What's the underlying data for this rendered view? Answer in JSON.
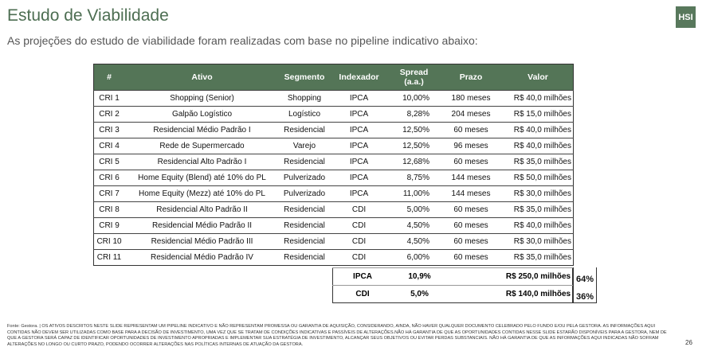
{
  "title": "Estudo de Viabilidade",
  "subtitle": "As projeções do estudo de viabilidade foram realizadas com base no pipeline indicativo abaixo:",
  "logo": "HSI",
  "table": {
    "headers": [
      "#",
      "Ativo",
      "Segmento",
      "Indexador",
      "Spread (a.a.)",
      "Prazo",
      "Valor"
    ],
    "rows": [
      [
        "CRI 1",
        "Shopping (Senior)",
        "Shopping",
        "IPCA",
        "10,00%",
        "180 meses",
        "R$ 40,0 milhões"
      ],
      [
        "CRI 2",
        "Galpão Logístico",
        "Logístico",
        "IPCA",
        "8,28%",
        "204 meses",
        "R$ 15,0 milhões"
      ],
      [
        "CRI 3",
        "Residencial Médio Padrão I",
        "Residencial",
        "IPCA",
        "12,50%",
        "60 meses",
        "R$ 40,0 milhões"
      ],
      [
        "CRI 4",
        "Rede de Supermercado",
        "Varejo",
        "IPCA",
        "12,50%",
        "96 meses",
        "R$ 40,0 milhões"
      ],
      [
        "CRI 5",
        "Residencial Alto Padrão I",
        "Residencial",
        "IPCA",
        "12,68%",
        "60 meses",
        "R$ 35,0 milhões"
      ],
      [
        "CRI 6",
        "Home Equity (Blend) até 10% do PL",
        "Pulverizado",
        "IPCA",
        "8,75%",
        "144 meses",
        "R$ 50,0 milhões"
      ],
      [
        "CRI 7",
        "Home Equity (Mezz) até 10% do PL",
        "Pulverizado",
        "IPCA",
        "11,00%",
        "144 meses",
        "R$ 30,0 milhões"
      ],
      [
        "CRI 8",
        "Residencial Alto Padrão II",
        "Residencial",
        "CDI",
        "5,00%",
        "60 meses",
        "R$ 35,0 milhões"
      ],
      [
        "CRI 9",
        "Residencial Médio Padrão II",
        "Residencial",
        "CDI",
        "4,50%",
        "60 meses",
        "R$ 40,0 milhões"
      ],
      [
        "CRI 10",
        "Residencial Médio Padrão III",
        "Residencial",
        "CDI",
        "4,50%",
        "60 meses",
        "R$ 30,0 milhões"
      ],
      [
        "CRI 11",
        "Residencial Médio Padrão IV",
        "Residencial",
        "CDI",
        "6,00%",
        "60 meses",
        "R$ 35,0 milhões"
      ]
    ]
  },
  "summary": [
    {
      "indexador": "IPCA",
      "spread": "10,9%",
      "valor": "R$ 250,0 milhões",
      "pct": "64%"
    },
    {
      "indexador": "CDI",
      "spread": "5,0%",
      "valor": "R$ 140,0 milhões",
      "pct": "36%"
    }
  ],
  "footnote": "Fonte: Gestora. | OS ATIVOS DESCRITOS NESTE SLIDE REPRESENTAM UM PIPELINE INDICATIVO E NÃO REPRESENTAM PROMESSA OU GARANTIA DE AQUISIÇÃO, CONSIDERANDO, AINDA, NÃO HAVER QUALQUER DOCUMENTO CELEBRADO PELO FUNDO E/OU PELA GESTORA. AS INFORMAÇÕES AQUI CONTIDAS NÃO DEVEM SER UTILIZADAS COMO BASE PARA A DECISÃO DE INVESTIMENTO, UMA VEZ QUE SE TRATAM DE CONDIÇÕES INDICATIVAS E PASSÍVEIS DE ALTERAÇÕES.NÃO HÁ GARANTIA DE QUE AS OPORTUNIDADES CONTIDAS NESSE SLIDE ESTARÃO DISPONÍVEIS PARA A GESTORA, NEM DE QUE A GESTORA SERÁ CAPAZ DE IDENTIFICAR OPORTUNIDADES DE INVESTIMENTO APROPRIADAS E IMPLEMENTAR SUA ESTRATÉGIA DE INVESTIMENTO, ALCANÇAR SEUS OBJETIVOS OU EVITAR PERDAS SUBSTANCIAIS. NÃO HÁ GARANTIA DE QUE AS INFORMAÇÕES AQUI INDICADAS NÃO SOFRAM ALTERAÇÕES NO LONGO OU CURTO PRAZO, PODENDO OCORRER ALTERAÇÕES NAS POLÍTICAS INTERNAS DE ATUAÇÃO DA GESTORA.",
  "page_number": "26"
}
